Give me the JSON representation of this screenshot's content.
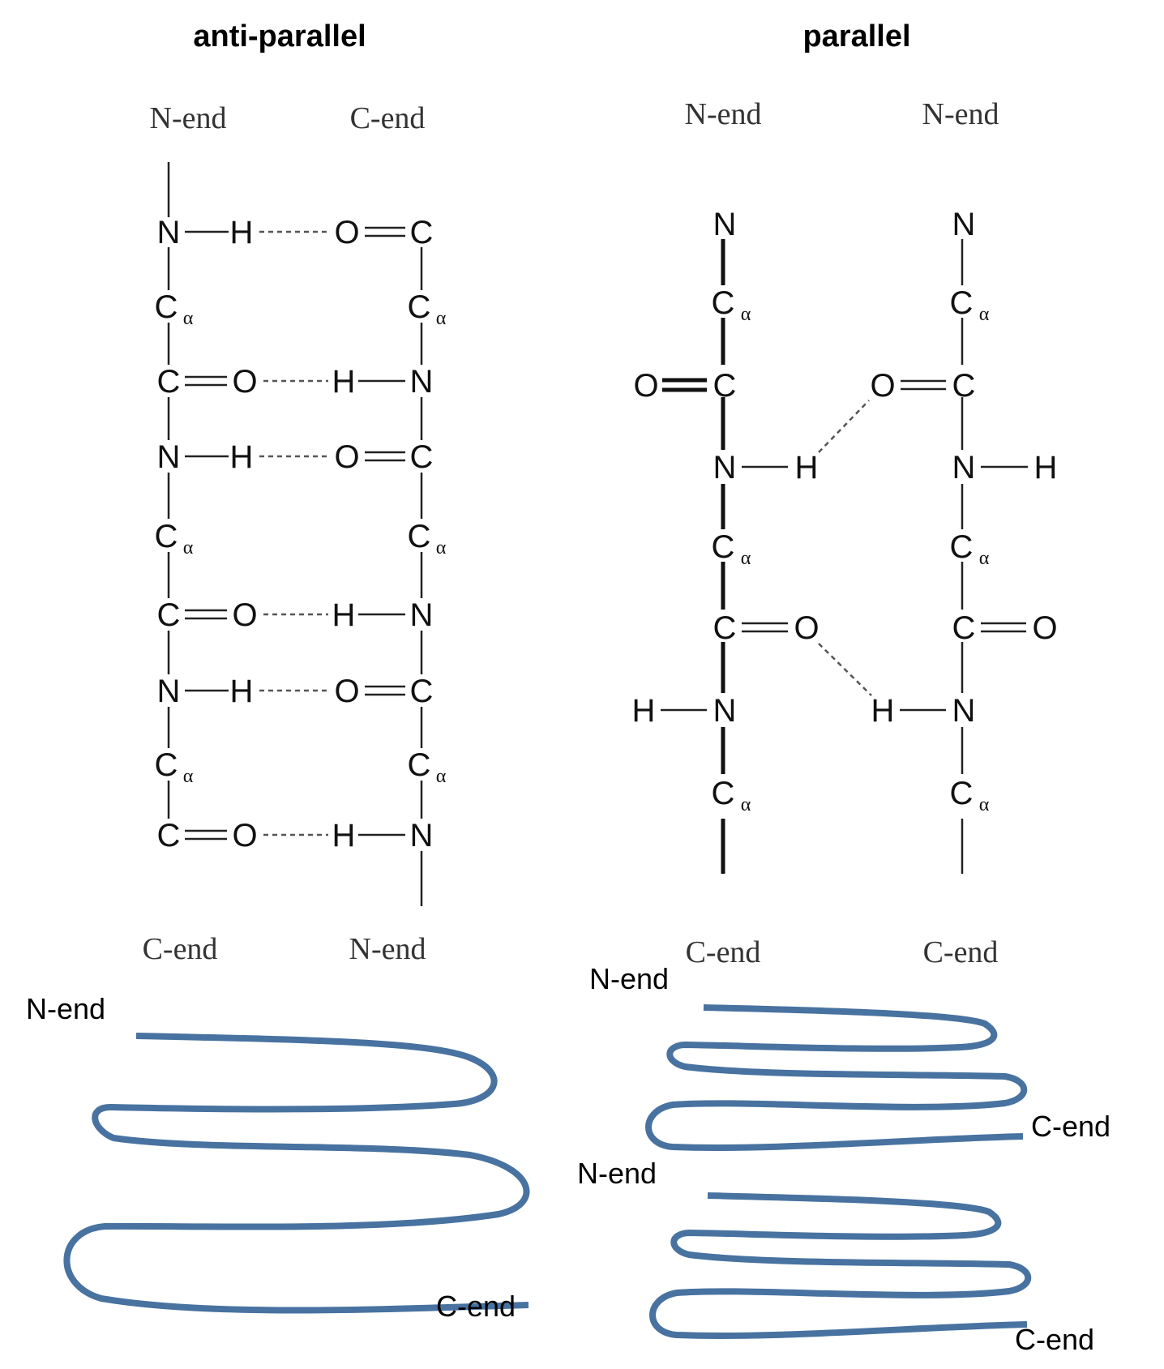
{
  "titles": {
    "antiparallel": "anti-parallel",
    "parallel": "parallel"
  },
  "structure_labels": {
    "anti_top_left": "N-end",
    "anti_top_right": "C-end",
    "anti_bottom_left": "C-end",
    "anti_bottom_right": "N-end",
    "par_top_left": "N-end",
    "par_top_right": "N-end",
    "par_bottom_left": "C-end",
    "par_bottom_right": "C-end"
  },
  "atoms": {
    "N": "N",
    "H": "H",
    "O": "O",
    "C": "C",
    "alpha": "α"
  },
  "cartoon_labels": {
    "anti_n_end": "N-end",
    "anti_c_end": "C-end",
    "par1_n_end": "N-end",
    "par1_c_end": "C-end",
    "par2_n_end": "N-end",
    "par2_c_end": "C-end"
  },
  "colors": {
    "strand": "#4872a0",
    "text": "#000000"
  }
}
